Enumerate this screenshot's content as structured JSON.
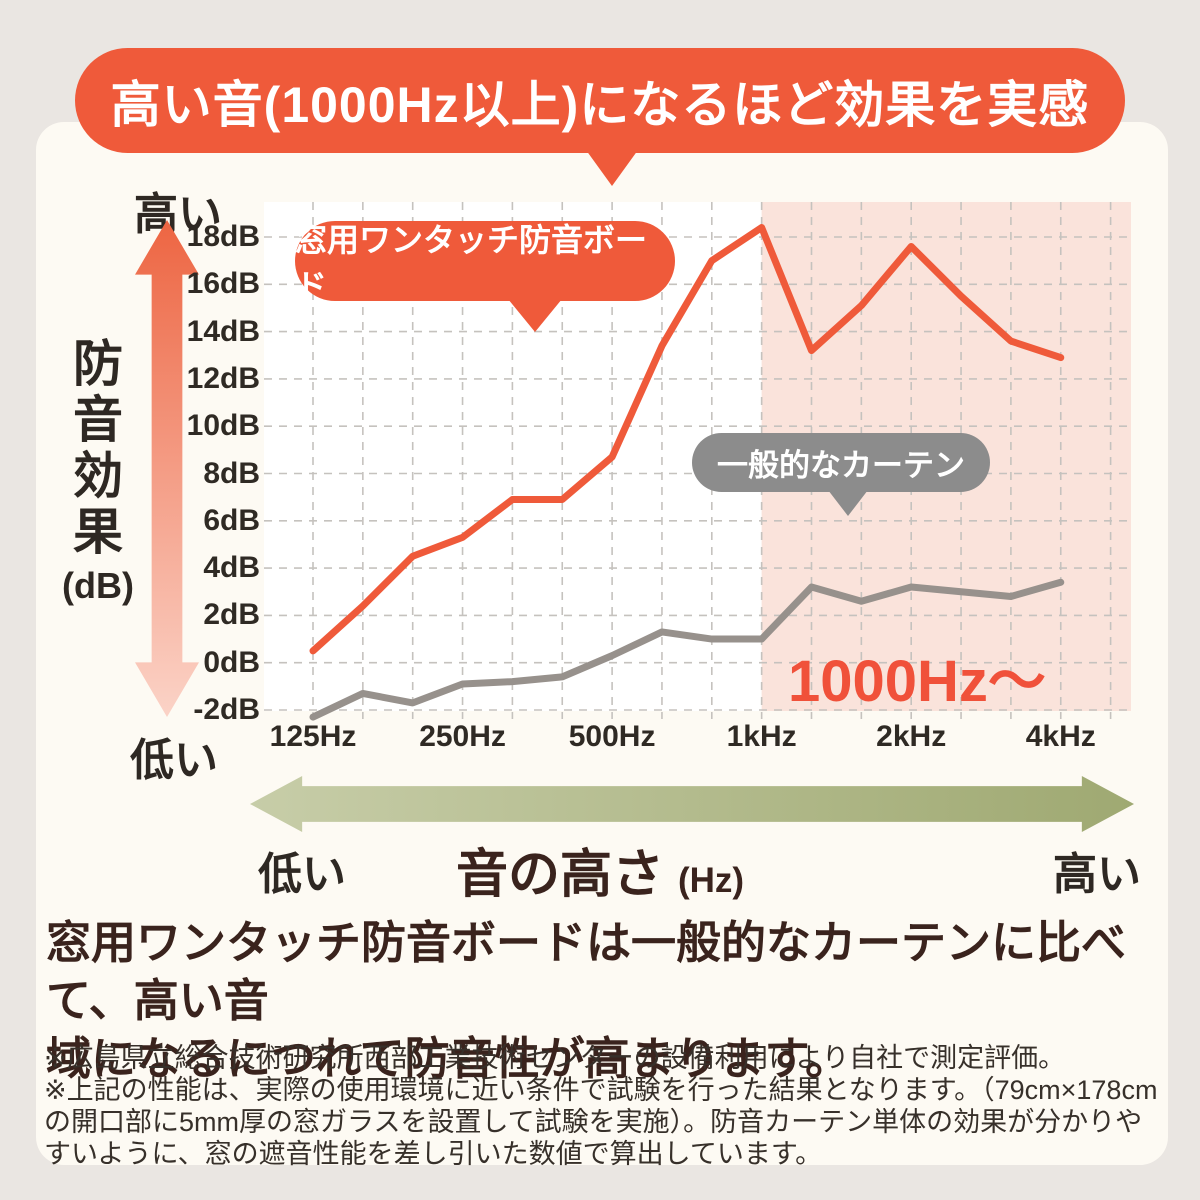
{
  "banner": {
    "text": "高い音(1000Hz以上)になるほど効果を実感",
    "bg_color": "#ef5a3a",
    "text_color": "#ffffff"
  },
  "left_axis": {
    "top_label": "高い",
    "bottom_label": "低い",
    "title_chars": [
      "防",
      "音",
      "効",
      "果"
    ],
    "unit": "(dB)",
    "arrow_top_color": "#ed6542",
    "arrow_bottom_color": "#fbd3c7"
  },
  "chart_data": {
    "type": "line",
    "x_ticks_hz": [
      125,
      160,
      200,
      250,
      315,
      400,
      500,
      630,
      800,
      1000,
      1250,
      1600,
      2000,
      2500,
      3150,
      4000
    ],
    "x_axis_labels": [
      {
        "hz": 125,
        "label": "125Hz"
      },
      {
        "hz": 250,
        "label": "250Hz"
      },
      {
        "hz": 500,
        "label": "500Hz"
      },
      {
        "hz": 1000,
        "label": "1kHz"
      },
      {
        "hz": 2000,
        "label": "2kHz"
      },
      {
        "hz": 4000,
        "label": "4kHz"
      }
    ],
    "y_ticks": [
      {
        "value": 18,
        "label": "18dB"
      },
      {
        "value": 16,
        "label": "16dB"
      },
      {
        "value": 14,
        "label": "14dB"
      },
      {
        "value": 12,
        "label": "12dB"
      },
      {
        "value": 10,
        "label": "10dB"
      },
      {
        "value": 8,
        "label": "8dB"
      },
      {
        "value": 6,
        "label": "6dB"
      },
      {
        "value": 4,
        "label": "4dB"
      },
      {
        "value": 2,
        "label": "2dB"
      },
      {
        "value": 0,
        "label": "0dB"
      },
      {
        "value": -2,
        "label": "-2dB"
      }
    ],
    "ylim": [
      -2,
      18
    ],
    "grid": "dashed",
    "grid_color": "#c5c2be",
    "series": [
      {
        "name": "窓用ワンタッチ防音ボード",
        "color": "#ef5a3a",
        "values": [
          0.5,
          2.4,
          4.5,
          5.3,
          6.9,
          6.9,
          8.7,
          13.4,
          17.0,
          18.4,
          13.2,
          15.1,
          17.6,
          15.5,
          13.6,
          12.9
        ]
      },
      {
        "name": "一般的なカーテン",
        "color": "#97918c",
        "values": [
          -2.3,
          -1.3,
          -1.7,
          -0.9,
          -0.8,
          -0.6,
          0.3,
          1.3,
          1.0,
          1.0,
          3.2,
          2.6,
          3.2,
          3.0,
          2.8,
          3.4
        ]
      }
    ],
    "highlight_region": {
      "from_hz": 1000,
      "label": "1000Hz〜",
      "fill": "#fae3db",
      "label_color": "#f0513a"
    }
  },
  "callouts": {
    "series1": {
      "text": "窓用ワンタッチ防音ボード",
      "bg": "#ef5a3a"
    },
    "series2": {
      "text": "一般的なカーテン",
      "bg": "#8c8c8c"
    }
  },
  "bottom_axis": {
    "left_label": "低い",
    "center_label": "音の高さ",
    "center_unit": "(Hz)",
    "right_label": "高い"
  },
  "statement": {
    "lines": [
      "窓用ワンタッチ防音ボードは一般的なカーテンに比べて、高い音",
      "域になるにつれて防音性が高まります。"
    ]
  },
  "footnotes": [
    "※広島県立総合技術研究所西部工業技術センターの設備利用により自社で測定評価。",
    "※上記の性能は、実際の使用環境に近い条件で試験を行った結果となります。（79cm×178cmの開口部に5mm厚の窓ガラスを設置して試験を実施）。防音カーテン単体の効果が分かりやすいように、窓の遮音性能を差し引いた数値で算出しています。"
  ]
}
